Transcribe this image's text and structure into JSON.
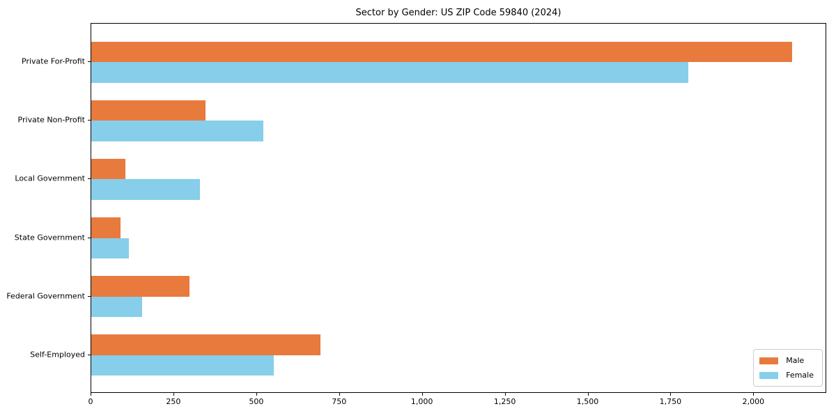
{
  "figure": {
    "background": "#ffffff"
  },
  "chart_data": {
    "type": "bar",
    "orientation": "horizontal",
    "title": "Sector by Gender: US ZIP Code 59840 (2024)",
    "categories": [
      "Private For-Profit",
      "Private Non-Profit",
      "Local Government",
      "State Government",
      "Federal Government",
      "Self-Employed"
    ],
    "series": [
      {
        "name": "Male",
        "color": "#e87a3d",
        "values": [
          2114,
          345,
          102,
          89,
          297,
          692
        ]
      },
      {
        "name": "Female",
        "color": "#87ceeb",
        "values": [
          1802,
          520,
          327,
          114,
          154,
          550
        ]
      }
    ],
    "xlabel": "",
    "ylabel": "",
    "xlim": [
      0,
      2220
    ],
    "xticks": [
      0,
      250,
      500,
      750,
      1000,
      1250,
      1500,
      1750,
      2000
    ],
    "xtick_labels": [
      "0",
      "250",
      "500",
      "750",
      "1,000",
      "1,250",
      "1,500",
      "1,750",
      "2,000"
    ],
    "grid": false,
    "legend": {
      "position": "lower right"
    }
  }
}
